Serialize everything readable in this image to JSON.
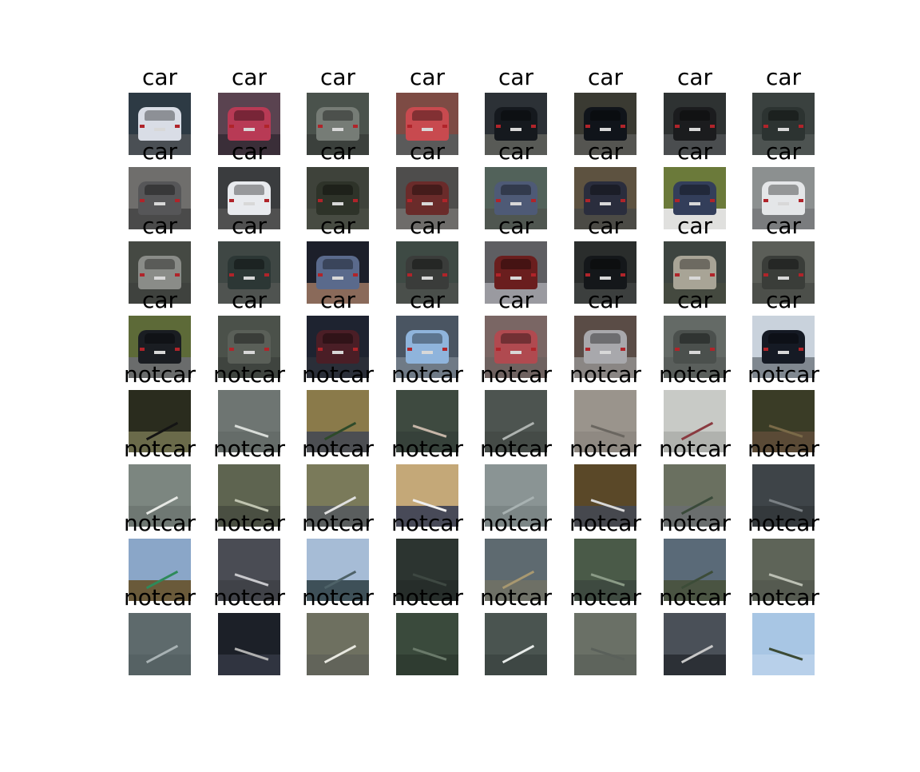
{
  "labels": [
    "car",
    "notcar"
  ],
  "rows": [
    {
      "label": "car",
      "images": [
        {
          "name": "white-hatchback-car-icon",
          "bg": "#2d3a44",
          "accent": "#d9dde6",
          "ground": "#4a4f54"
        },
        {
          "name": "blurred-rear-car-icon",
          "bg": "#5a4350",
          "accent": "#b83a55",
          "ground": "#3a2e38"
        },
        {
          "name": "grey-sedan-car-icon",
          "bg": "#4a524c",
          "accent": "#767c76",
          "ground": "#3b403c"
        },
        {
          "name": "red-hatchback-car-icon",
          "bg": "#7d4b44",
          "accent": "#c84a4f",
          "ground": "#5a5a5a"
        },
        {
          "name": "dark-suv-car-icon",
          "bg": "#2c3136",
          "accent": "#15191e",
          "ground": "#585a56"
        },
        {
          "name": "black-sedan-car-icon",
          "bg": "#3a3a32",
          "accent": "#10141a",
          "ground": "#555551"
        },
        {
          "name": "dark-hatchback-car-icon",
          "bg": "#2e3232",
          "accent": "#1b1c1e",
          "ground": "#4a4d4f"
        },
        {
          "name": "dark-green-car-icon",
          "bg": "#3a413f",
          "accent": "#2c3331",
          "ground": "#4d5351"
        }
      ]
    },
    {
      "label": "car",
      "images": [
        {
          "name": "grey-car-rear-icon",
          "bg": "#6f6e6c",
          "accent": "#565658",
          "ground": "#4a4a4a"
        },
        {
          "name": "white-car-rear-icon",
          "bg": "#3a3c3e",
          "accent": "#e8eaee",
          "ground": "#505050"
        },
        {
          "name": "dark-van-icon",
          "bg": "#3e423a",
          "accent": "#2e3329",
          "ground": "#474b42"
        },
        {
          "name": "red-wagon-car-icon",
          "bg": "#4e4d4c",
          "accent": "#6a2b2a",
          "ground": "#6e6c6a"
        },
        {
          "name": "blue-grey-car-icon",
          "bg": "#52625a",
          "accent": "#4e5a76",
          "ground": "#4f5650"
        },
        {
          "name": "navy-sedan-car-icon",
          "bg": "#5d5240",
          "accent": "#2a2d3d",
          "ground": "#4b4a45"
        },
        {
          "name": "blue-car-trees-icon",
          "bg": "#6b7a3a",
          "accent": "#333e5a",
          "ground": "#e0e0de"
        },
        {
          "name": "white-sedan-car-icon",
          "bg": "#8c9090",
          "accent": "#e4e6e8",
          "ground": "#7a7c7e"
        }
      ]
    },
    {
      "label": "car",
      "images": [
        {
          "name": "silver-hatchback-car-icon",
          "bg": "#454943",
          "accent": "#8a8c88",
          "ground": "#3f423e"
        },
        {
          "name": "dark-teal-car-icon",
          "bg": "#3f4744",
          "accent": "#2c3735",
          "ground": "#4f5350"
        },
        {
          "name": "blue-car-night-icon",
          "bg": "#1c1f2a",
          "accent": "#5a6a8c",
          "ground": "#8a6a5a"
        },
        {
          "name": "dark-grey-car-icon",
          "bg": "#3e4a44",
          "accent": "#3a3c3a",
          "ground": "#4a4f4b"
        },
        {
          "name": "red-suv-car-icon",
          "bg": "#5e5e62",
          "accent": "#6a1e1e",
          "ground": "#9a9aa0"
        },
        {
          "name": "black-car-traffic-icon",
          "bg": "#2a2d2c",
          "accent": "#14171a",
          "ground": "#3c3f3e"
        },
        {
          "name": "beige-hatchback-car-icon",
          "bg": "#3d4440",
          "accent": "#a8a496",
          "ground": "#44493f"
        },
        {
          "name": "blurred-dark-car-icon",
          "bg": "#5b5e58",
          "accent": "#3a3d39",
          "ground": "#4c4f4a"
        }
      ]
    },
    {
      "label": "car",
      "images": [
        {
          "name": "black-hatchback-road-icon",
          "bg": "#5d6a38",
          "accent": "#1a1d22",
          "ground": "#6a6c6c"
        },
        {
          "name": "grey-wagon-car-icon",
          "bg": "#4b514a",
          "accent": "#5a5f58",
          "ground": "#3f443f"
        },
        {
          "name": "dark-red-car-icon",
          "bg": "#1e2330",
          "accent": "#4a1e26",
          "ground": "#2a2e38"
        },
        {
          "name": "light-blue-car-icon",
          "bg": "#4a5562",
          "accent": "#8fb4dc",
          "ground": "#6f7a86"
        },
        {
          "name": "red-car-blur-icon",
          "bg": "#7a6664",
          "accent": "#b04a50",
          "ground": "#6f6260"
        },
        {
          "name": "silver-wagon-car-icon",
          "bg": "#5a4c46",
          "accent": "#a8a8ac",
          "ground": "#8a8684"
        },
        {
          "name": "blurred-grey-car-icon",
          "bg": "#646a66",
          "accent": "#4b504d",
          "ground": "#5a5f5c"
        },
        {
          "name": "black-car-sky-icon",
          "bg": "#c9d2dc",
          "accent": "#151a24",
          "ground": "#808890"
        }
      ]
    },
    {
      "label": "notcar",
      "images": [
        {
          "name": "guardrail-trees-icon",
          "bg": "#2a2c1e",
          "accent": "#141414",
          "ground": "#6a6a4a"
        },
        {
          "name": "road-lane-line-icon",
          "bg": "#6e7572",
          "accent": "#d8dcd8",
          "ground": "#656c69"
        },
        {
          "name": "roadside-grass-icon",
          "bg": "#8a7a4a",
          "accent": "#2e4a2a",
          "ground": "#4c4e52"
        },
        {
          "name": "road-surface-dark-icon",
          "bg": "#3e4a40",
          "accent": "#c6b6a8",
          "ground": "#36413a"
        },
        {
          "name": "road-surface-line-icon",
          "bg": "#4d5450",
          "accent": "#aeb3b0",
          "ground": "#454b47"
        },
        {
          "name": "concrete-road-icon",
          "bg": "#9a948c",
          "accent": "#6a6660",
          "ground": "#8f8982"
        },
        {
          "name": "road-sign-icon",
          "bg": "#c8cac6",
          "accent": "#8a3a40",
          "ground": "#b0b2ae"
        },
        {
          "name": "forest-roadside-icon",
          "bg": "#3a3c26",
          "accent": "#7a6a48",
          "ground": "#5a4a36"
        }
      ]
    },
    {
      "label": "notcar",
      "images": [
        {
          "name": "road-arrow-marking-icon",
          "bg": "#7c8680",
          "accent": "#e6e8e4",
          "ground": "#6f7873"
        },
        {
          "name": "road-barrier-icon",
          "bg": "#5e6450",
          "accent": "#c0c4b0",
          "ground": "#4a4f42"
        },
        {
          "name": "road-curve-icon",
          "bg": "#7a7a5a",
          "accent": "#e0e0e0",
          "ground": "#5a5e5e"
        },
        {
          "name": "highway-horizon-icon",
          "bg": "#c4a878",
          "accent": "#f0f0f0",
          "ground": "#484a58"
        },
        {
          "name": "light-road-surface-icon",
          "bg": "#8a9494",
          "accent": "#a8b2b2",
          "ground": "#7c8686"
        },
        {
          "name": "highway-dry-grass-icon",
          "bg": "#5a4828",
          "accent": "#d8d8d8",
          "ground": "#46484e"
        },
        {
          "name": "highway-trees-icon",
          "bg": "#6a7060",
          "accent": "#3a4a3a",
          "ground": "#6a6e6e"
        },
        {
          "name": "concrete-wall-icon",
          "bg": "#3e4448",
          "accent": "#7a8084",
          "ground": "#34393c"
        }
      ]
    },
    {
      "label": "notcar",
      "images": [
        {
          "name": "highway-sign-tree-icon",
          "bg": "#8aa6c8",
          "accent": "#2e8a5a",
          "ground": "#6a5a3a"
        },
        {
          "name": "asphalt-lane-icon",
          "bg": "#4a4c54",
          "accent": "#c8c8cc",
          "ground": "#404248"
        },
        {
          "name": "sky-hills-icon",
          "bg": "#a6bcd6",
          "accent": "#4e6268",
          "ground": "#3e5058"
        },
        {
          "name": "dark-road-surface-icon",
          "bg": "#2c3430",
          "accent": "#3e4842",
          "ground": "#262d2a"
        },
        {
          "name": "hillside-field-icon",
          "bg": "#5e6a70",
          "accent": "#a89870",
          "ground": "#6e7066"
        },
        {
          "name": "road-median-icon",
          "bg": "#4a5a48",
          "accent": "#8a9a86",
          "ground": "#3e4a40"
        },
        {
          "name": "tree-covered-hill-icon",
          "bg": "#5a6a78",
          "accent": "#3c4c38",
          "ground": "#4a5442"
        },
        {
          "name": "road-edge-line-icon",
          "bg": "#5e6458",
          "accent": "#bcc0b4",
          "ground": "#555a50"
        }
      ]
    },
    {
      "label": "notcar",
      "images": [
        {
          "name": "wet-road-icon",
          "bg": "#5e6a6c",
          "accent": "#a8b2b4",
          "ground": "#566264"
        },
        {
          "name": "guardrail-dark-icon",
          "bg": "#1c2028",
          "accent": "#b0b0b0",
          "ground": "#303440"
        },
        {
          "name": "road-dashed-line-icon",
          "bg": "#6e7060",
          "accent": "#e8e8e0",
          "ground": "#62645a"
        },
        {
          "name": "road-shoulder-icon",
          "bg": "#3a4a3c",
          "accent": "#6a7a6a",
          "ground": "#2f3c31"
        },
        {
          "name": "crosshatch-marking-icon",
          "bg": "#4a5450",
          "accent": "#e8ecea",
          "ground": "#3e4744"
        },
        {
          "name": "blurred-road-icon",
          "bg": "#6a7066",
          "accent": "#5a605a",
          "ground": "#5e645c"
        },
        {
          "name": "barrier-truck-icon",
          "bg": "#4a5058",
          "accent": "#c8c8c8",
          "ground": "#2c3036"
        },
        {
          "name": "sky-treetops-icon",
          "bg": "#a8c6e4",
          "accent": "#3c4a34",
          "ground": "#b8d0ea"
        }
      ]
    }
  ]
}
